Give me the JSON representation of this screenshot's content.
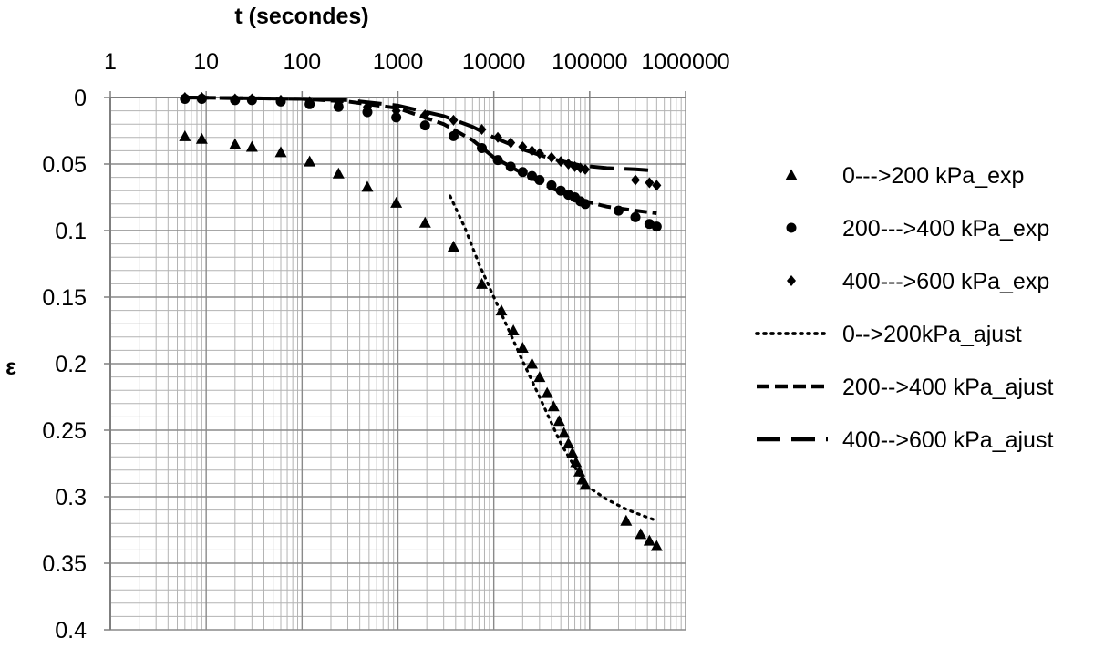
{
  "chart_data": {
    "type": "scatter",
    "title": "",
    "xlabel": "t (secondes)",
    "ylabel": "ε",
    "xscale": "log",
    "xlim": [
      1,
      1000000
    ],
    "ylim": [
      0,
      0.4
    ],
    "y_inverted": true,
    "grid": true,
    "x_ticks": [
      {
        "value": 1,
        "label": "1"
      },
      {
        "value": 10,
        "label": "10"
      },
      {
        "value": 100,
        "label": "100"
      },
      {
        "value": 1000,
        "label": "1000"
      },
      {
        "value": 10000,
        "label": "10000"
      },
      {
        "value": 100000,
        "label": "100000"
      },
      {
        "value": 1000000,
        "label": "1000000"
      }
    ],
    "y_ticks": [
      {
        "value": 0,
        "label": "0"
      },
      {
        "value": 0.05,
        "label": "0.05"
      },
      {
        "value": 0.1,
        "label": "0.1"
      },
      {
        "value": 0.15,
        "label": "0.15"
      },
      {
        "value": 0.2,
        "label": "0.2"
      },
      {
        "value": 0.25,
        "label": "0.25"
      },
      {
        "value": 0.3,
        "label": "0.3"
      },
      {
        "value": 0.35,
        "label": "0.35"
      },
      {
        "value": 0.4,
        "label": "0.4"
      }
    ],
    "legend_position": "right",
    "series": [
      {
        "name": "0--->200 kPa_exp",
        "kind": "marker",
        "marker": "triangle",
        "points": [
          [
            6,
            0.029
          ],
          [
            9,
            0.031
          ],
          [
            20,
            0.035
          ],
          [
            30,
            0.037
          ],
          [
            60,
            0.041
          ],
          [
            120,
            0.048
          ],
          [
            240,
            0.057
          ],
          [
            480,
            0.067
          ],
          [
            960,
            0.079
          ],
          [
            1920,
            0.094
          ],
          [
            3800,
            0.112
          ],
          [
            7500,
            0.14
          ],
          [
            12000,
            0.16
          ],
          [
            16000,
            0.175
          ],
          [
            20000,
            0.188
          ],
          [
            25000,
            0.2
          ],
          [
            30000,
            0.21
          ],
          [
            36000,
            0.222
          ],
          [
            42000,
            0.232
          ],
          [
            48000,
            0.243
          ],
          [
            54000,
            0.252
          ],
          [
            60000,
            0.26
          ],
          [
            66000,
            0.267
          ],
          [
            72000,
            0.274
          ],
          [
            78000,
            0.281
          ],
          [
            84000,
            0.287
          ],
          [
            90000,
            0.291
          ],
          [
            240000,
            0.318
          ],
          [
            340000,
            0.328
          ],
          [
            420000,
            0.333
          ],
          [
            500000,
            0.337
          ]
        ]
      },
      {
        "name": "200--->400 kPa_exp",
        "kind": "marker",
        "marker": "circle",
        "points": [
          [
            6,
            0.001
          ],
          [
            9,
            0.001
          ],
          [
            20,
            0.002
          ],
          [
            30,
            0.002
          ],
          [
            60,
            0.003
          ],
          [
            120,
            0.005
          ],
          [
            240,
            0.007
          ],
          [
            480,
            0.011
          ],
          [
            960,
            0.015
          ],
          [
            1920,
            0.021
          ],
          [
            3800,
            0.029
          ],
          [
            7500,
            0.038
          ],
          [
            11000,
            0.047
          ],
          [
            15000,
            0.052
          ],
          [
            20000,
            0.056
          ],
          [
            25000,
            0.059
          ],
          [
            30000,
            0.062
          ],
          [
            40000,
            0.066
          ],
          [
            50000,
            0.07
          ],
          [
            60000,
            0.073
          ],
          [
            70000,
            0.075
          ],
          [
            80000,
            0.078
          ],
          [
            90000,
            0.08
          ],
          [
            200000,
            0.085
          ],
          [
            300000,
            0.09
          ],
          [
            420000,
            0.095
          ],
          [
            500000,
            0.097
          ]
        ]
      },
      {
        "name": "400--->600 kPa_exp",
        "kind": "marker",
        "marker": "diamond",
        "points": [
          [
            6,
            0.0
          ],
          [
            9,
            0.0
          ],
          [
            20,
            0.001
          ],
          [
            30,
            0.001
          ],
          [
            60,
            0.002
          ],
          [
            120,
            0.003
          ],
          [
            240,
            0.005
          ],
          [
            480,
            0.007
          ],
          [
            960,
            0.01
          ],
          [
            1920,
            0.013
          ],
          [
            3800,
            0.017
          ],
          [
            7500,
            0.024
          ],
          [
            11000,
            0.03
          ],
          [
            15000,
            0.034
          ],
          [
            20000,
            0.037
          ],
          [
            25000,
            0.04
          ],
          [
            30000,
            0.042
          ],
          [
            40000,
            0.045
          ],
          [
            50000,
            0.048
          ],
          [
            60000,
            0.05
          ],
          [
            70000,
            0.052
          ],
          [
            80000,
            0.053
          ],
          [
            90000,
            0.054
          ],
          [
            300000,
            0.062
          ],
          [
            420000,
            0.064
          ],
          [
            500000,
            0.066
          ]
        ]
      },
      {
        "name": "0-->200kPa_ajust",
        "kind": "line",
        "dash": "dotted",
        "points": [
          [
            3500,
            0.074
          ],
          [
            5000,
            0.098
          ],
          [
            7000,
            0.125
          ],
          [
            10000,
            0.15
          ],
          [
            15000,
            0.178
          ],
          [
            20000,
            0.198
          ],
          [
            30000,
            0.225
          ],
          [
            50000,
            0.26
          ],
          [
            90000,
            0.291
          ],
          [
            150000,
            0.302
          ],
          [
            250000,
            0.31
          ],
          [
            350000,
            0.314
          ],
          [
            500000,
            0.318
          ]
        ]
      },
      {
        "name": "200-->400 kPa_ajust",
        "kind": "line",
        "dash": "dashed",
        "points": [
          [
            6,
            0.0
          ],
          [
            100,
            0.001
          ],
          [
            300,
            0.003
          ],
          [
            1000,
            0.008
          ],
          [
            3000,
            0.02
          ],
          [
            6000,
            0.032
          ],
          [
            10000,
            0.045
          ],
          [
            20000,
            0.057
          ],
          [
            40000,
            0.068
          ],
          [
            80000,
            0.077
          ],
          [
            150000,
            0.082
          ],
          [
            300000,
            0.085
          ],
          [
            500000,
            0.087
          ]
        ]
      },
      {
        "name": "400-->600 kPa_ajust",
        "kind": "line",
        "dash": "longdash",
        "points": [
          [
            6,
            0.0
          ],
          [
            100,
            0.001
          ],
          [
            300,
            0.002
          ],
          [
            1000,
            0.006
          ],
          [
            3000,
            0.014
          ],
          [
            6000,
            0.022
          ],
          [
            10000,
            0.03
          ],
          [
            20000,
            0.039
          ],
          [
            40000,
            0.046
          ],
          [
            80000,
            0.051
          ],
          [
            150000,
            0.053
          ],
          [
            300000,
            0.054
          ],
          [
            500000,
            0.055
          ]
        ]
      }
    ]
  }
}
